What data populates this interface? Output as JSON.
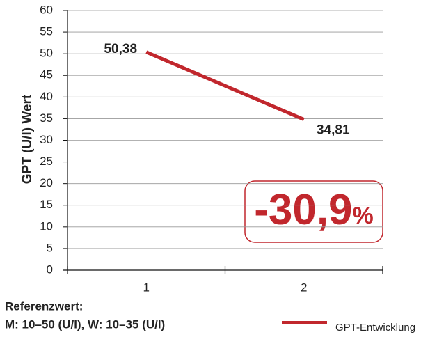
{
  "chart_data": {
    "type": "line",
    "ylabel": "GPT (U/l) Wert",
    "categories": [
      "1",
      "2"
    ],
    "series": [
      {
        "name": "GPT-Entwicklung",
        "color": "#c1272d",
        "values": [
          50.38,
          34.81
        ],
        "value_labels": [
          "50,38",
          "34,81"
        ]
      }
    ],
    "ylim": [
      0,
      60
    ],
    "yticks": [
      0,
      5,
      10,
      15,
      20,
      25,
      30,
      35,
      40,
      45,
      50,
      55,
      60
    ],
    "grid": true,
    "annotation": {
      "text": "-30,9",
      "unit": "%"
    },
    "notes": [
      "Referenzwert:",
      "M: 10–50 (U/l), W: 10–35 (U/l)"
    ]
  }
}
